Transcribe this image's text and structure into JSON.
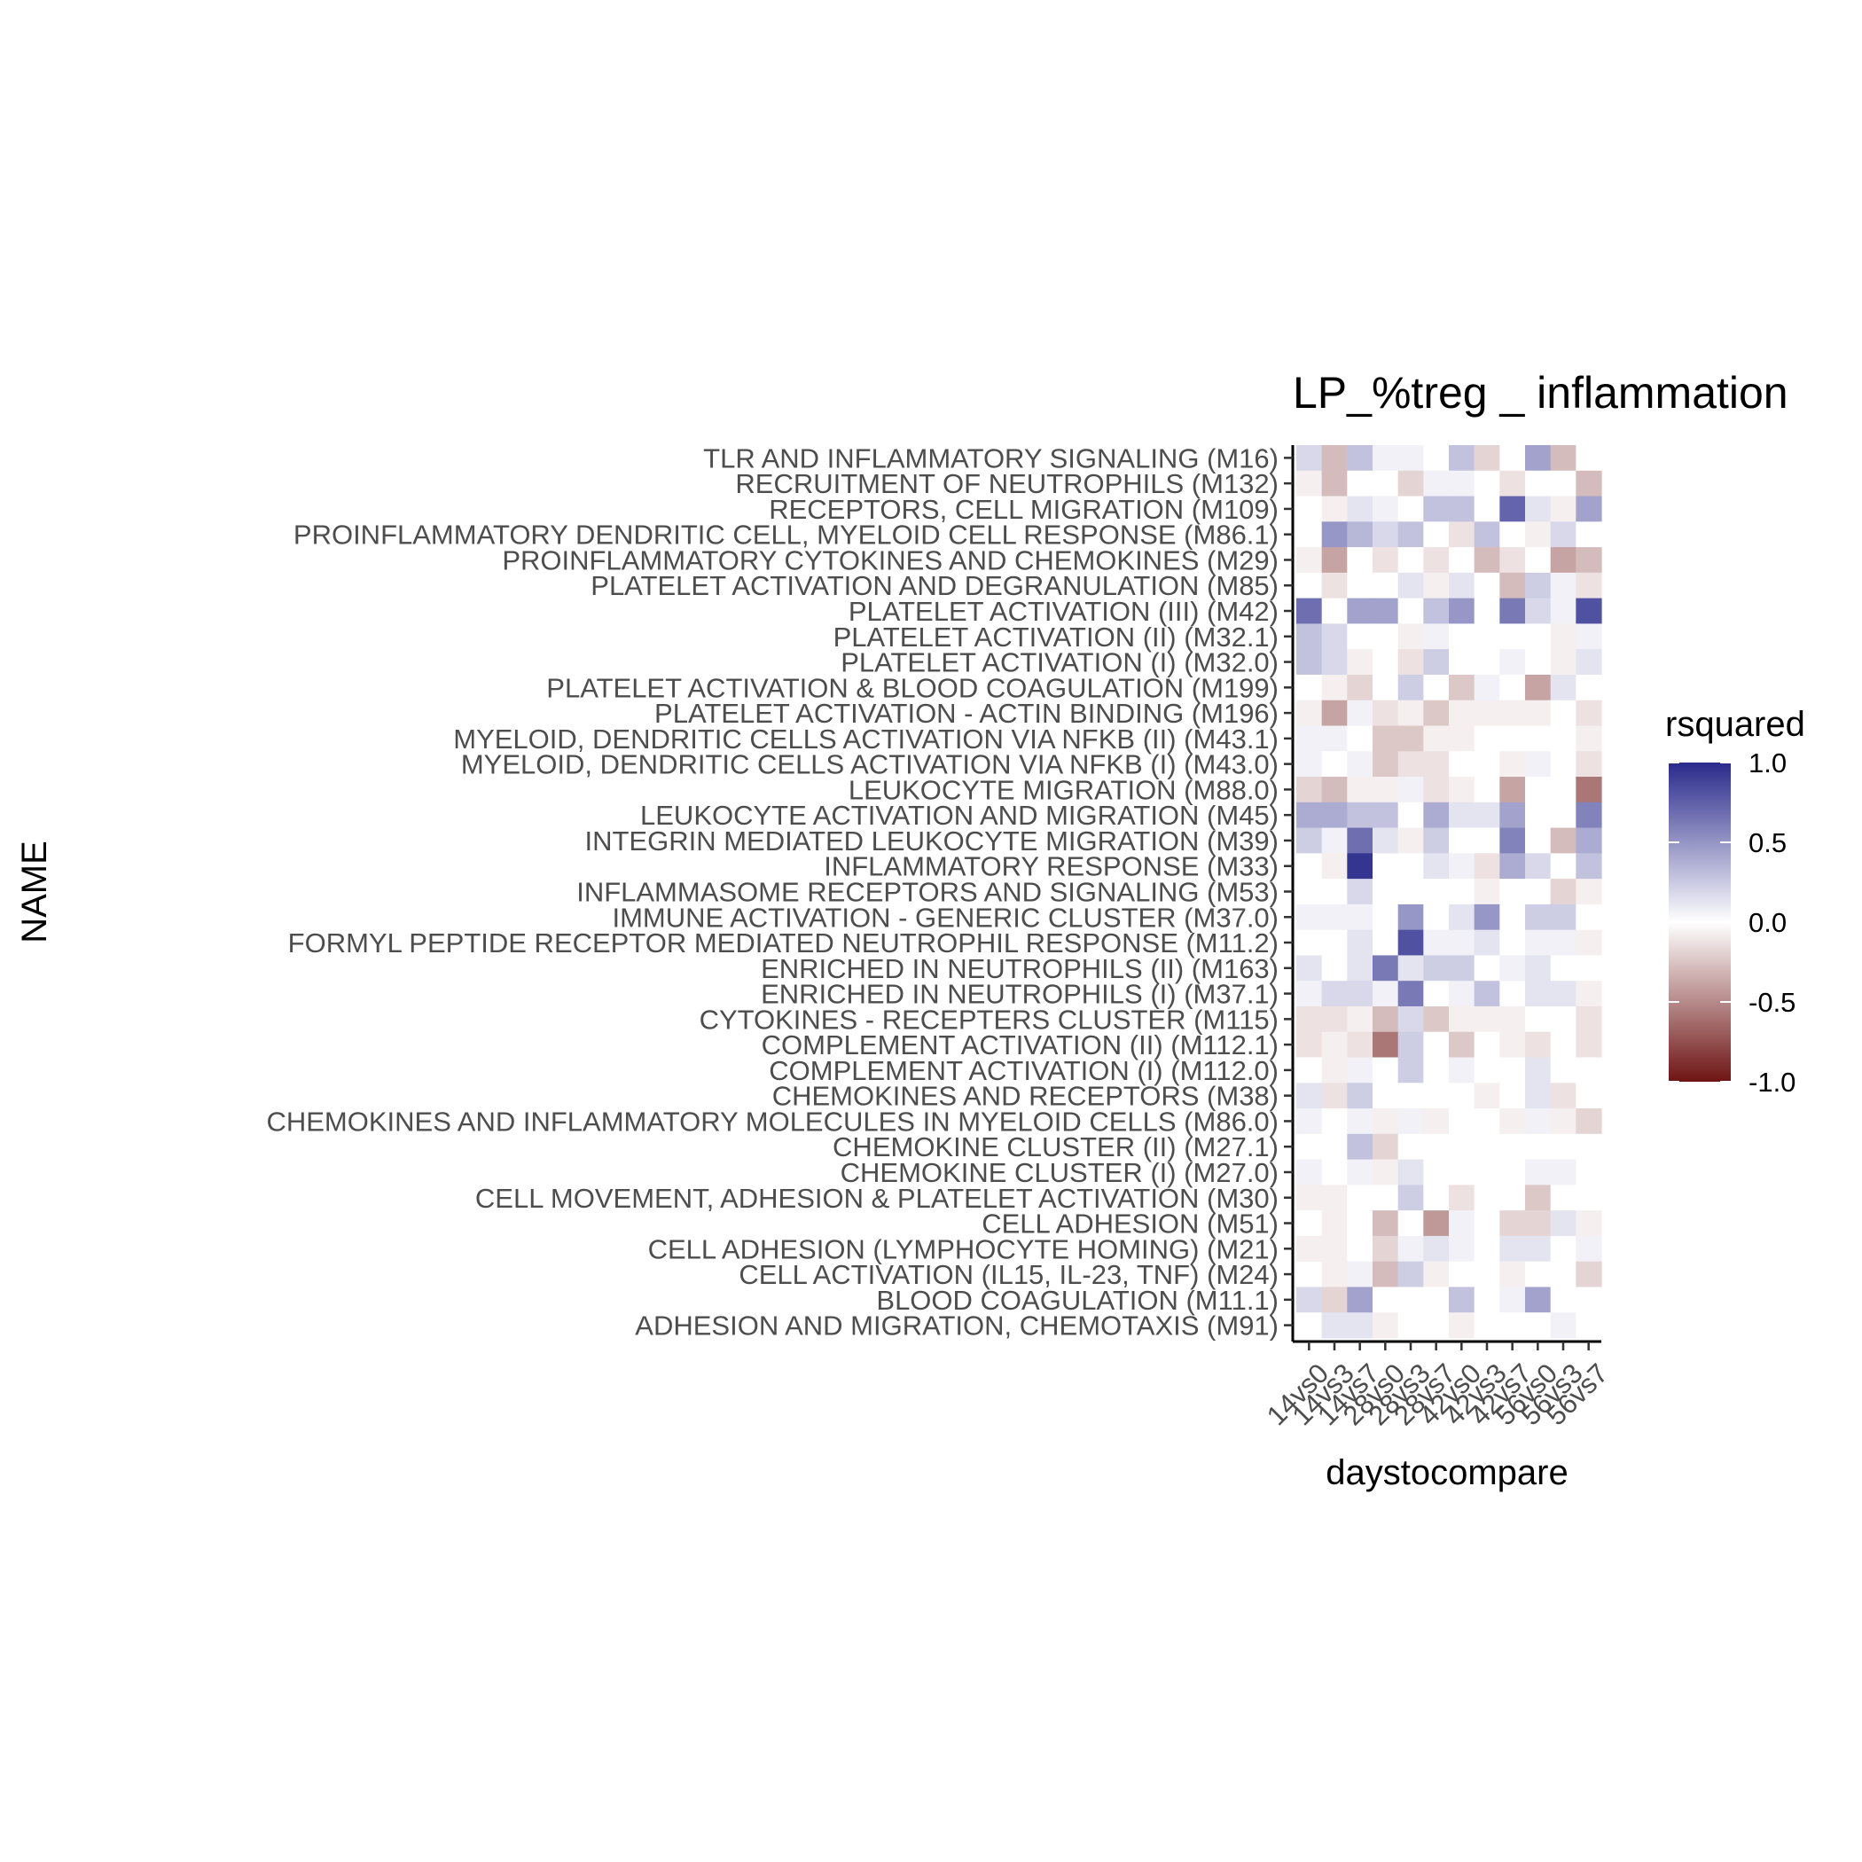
{
  "chart_data": {
    "type": "heatmap",
    "title": "LP_%treg _ inflammation",
    "xlabel": "daystocompare",
    "ylabel": "NAME",
    "legend_title": "rsquared",
    "legend_placement": "right",
    "legend_ticks": [
      "1.0",
      "0.5",
      "0.0",
      "-0.5",
      "-1.0"
    ],
    "legend_tick_values": [
      1.0,
      0.5,
      0.0,
      -0.5,
      -1.0
    ],
    "color_range": [
      -1,
      1
    ],
    "colors": {
      "high": "#2a2a8c",
      "mid": "#ffffff",
      "low": "#6e1414"
    },
    "x_categories": [
      "14vs0",
      "14vs3",
      "14vs7",
      "28vs0",
      "28vs3",
      "28vs7",
      "42vs0",
      "42vs3",
      "42vs7",
      "56vs0",
      "56vs3",
      "56vs7"
    ],
    "y_categories": [
      "TLR AND INFLAMMATORY SIGNALING (M16)",
      "RECRUITMENT OF NEUTROPHILS (M132)",
      "RECEPTORS, CELL MIGRATION (M109)",
      "PROINFLAMMATORY DENDRITIC CELL, MYELOID CELL RESPONSE (M86.1)",
      "PROINFLAMMATORY CYTOKINES AND CHEMOKINES (M29)",
      "PLATELET ACTIVATION AND DEGRANULATION (M85)",
      "PLATELET ACTIVATION (III) (M42)",
      "PLATELET ACTIVATION (II) (M32.1)",
      "PLATELET ACTIVATION (I) (M32.0)",
      "PLATELET ACTIVATION & BLOOD COAGULATION (M199)",
      "PLATELET ACTIVATION - ACTIN BINDING (M196)",
      "MYELOID, DENDRITIC CELLS ACTIVATION VIA NFKB (II) (M43.1)",
      "MYELOID, DENDRITIC CELLS ACTIVATION VIA NFKB (I) (M43.0)",
      "LEUKOCYTE MIGRATION (M88.0)",
      "LEUKOCYTE ACTIVATION AND MIGRATION (M45)",
      "INTEGRIN MEDIATED LEUKOCYTE MIGRATION (M39)",
      "INFLAMMATORY RESPONSE (M33)",
      "INFLAMMASOME RECEPTORS AND SIGNALING (M53)",
      "IMMUNE ACTIVATION - GENERIC CLUSTER (M37.0)",
      "FORMYL PEPTIDE RECEPTOR MEDIATED NEUTROPHIL RESPONSE (M11.2)",
      "ENRICHED IN NEUTROPHILS (II) (M163)",
      "ENRICHED IN NEUTROPHILS (I) (M37.1)",
      "CYTOKINES - RECEPTERS CLUSTER (M115)",
      "COMPLEMENT ACTIVATION (II) (M112.1)",
      "COMPLEMENT ACTIVATION (I) (M112.0)",
      "CHEMOKINES AND RECEPTORS (M38)",
      "CHEMOKINES AND INFLAMMATORY MOLECULES IN MYELOID CELLS (M86.0)",
      "CHEMOKINE CLUSTER (II) (M27.1)",
      "CHEMOKINE CLUSTER (I) (M27.0)",
      "CELL MOVEMENT, ADHESION & PLATELET ACTIVATION (M30)",
      "CELL ADHESION (M51)",
      "CELL ADHESION (LYMPHOCYTE HOMING) (M21)",
      "CELL ACTIVATION (IL15, IL-23, TNF) (M24)",
      "BLOOD COAGULATION (M11.1)",
      "ADHESION AND MIGRATION, CHEMOTAXIS (M91)"
    ],
    "values": [
      [
        0.15,
        -0.25,
        0.25,
        0.05,
        0.05,
        0.0,
        0.25,
        -0.15,
        0.0,
        0.4,
        -0.25,
        0.0
      ],
      [
        -0.05,
        -0.25,
        0.0,
        0.0,
        -0.15,
        0.05,
        0.05,
        0.0,
        -0.1,
        0.0,
        0.0,
        -0.25
      ],
      [
        0.0,
        -0.05,
        0.1,
        0.05,
        0.0,
        0.25,
        0.25,
        0.0,
        0.7,
        0.1,
        -0.05,
        0.4
      ],
      [
        0.0,
        0.45,
        0.3,
        0.15,
        0.25,
        0.0,
        -0.1,
        0.25,
        0.0,
        -0.05,
        0.15,
        0.0
      ],
      [
        -0.05,
        -0.35,
        0.0,
        -0.1,
        0.0,
        -0.1,
        0.0,
        -0.25,
        -0.1,
        0.0,
        -0.35,
        -0.25
      ],
      [
        0.0,
        -0.1,
        0.0,
        0.0,
        0.1,
        -0.05,
        0.1,
        0.0,
        -0.25,
        0.2,
        0.05,
        -0.1
      ],
      [
        0.65,
        0.0,
        0.4,
        0.4,
        0.0,
        0.25,
        0.45,
        0.0,
        0.6,
        0.15,
        0.05,
        0.8
      ],
      [
        0.25,
        0.15,
        0.0,
        0.0,
        -0.05,
        0.05,
        0.0,
        0.0,
        0.0,
        0.0,
        -0.05,
        0.05
      ],
      [
        0.25,
        0.15,
        -0.05,
        0.0,
        -0.1,
        0.2,
        0.0,
        0.0,
        0.05,
        0.0,
        -0.05,
        0.1
      ],
      [
        0.0,
        -0.05,
        -0.15,
        0.0,
        0.2,
        0.0,
        -0.2,
        0.05,
        0.0,
        -0.35,
        0.1,
        0.0
      ],
      [
        -0.05,
        -0.35,
        0.05,
        -0.1,
        -0.05,
        -0.2,
        -0.05,
        -0.05,
        -0.05,
        -0.05,
        0.0,
        -0.1
      ],
      [
        0.05,
        0.05,
        0.0,
        -0.2,
        -0.2,
        -0.05,
        -0.05,
        0.0,
        0.0,
        0.0,
        0.0,
        -0.05
      ],
      [
        0.05,
        0.0,
        0.05,
        -0.2,
        -0.1,
        -0.1,
        0.0,
        0.0,
        -0.05,
        0.05,
        0.0,
        -0.1
      ],
      [
        -0.15,
        -0.25,
        -0.05,
        -0.05,
        0.05,
        -0.1,
        -0.05,
        0.0,
        -0.35,
        0.0,
        0.0,
        -0.55
      ],
      [
        0.35,
        0.35,
        0.25,
        0.25,
        0.0,
        0.35,
        0.1,
        0.1,
        0.4,
        0.0,
        0.0,
        0.55
      ],
      [
        0.2,
        0.05,
        0.65,
        0.1,
        -0.05,
        0.2,
        0.0,
        0.0,
        0.55,
        0.0,
        -0.25,
        0.35
      ],
      [
        0.0,
        -0.05,
        0.95,
        0.0,
        0.0,
        0.1,
        0.05,
        -0.1,
        0.35,
        0.15,
        0.0,
        0.25
      ],
      [
        0.0,
        0.0,
        0.15,
        0.0,
        0.0,
        0.0,
        0.0,
        -0.05,
        0.0,
        0.0,
        -0.15,
        -0.05
      ],
      [
        0.05,
        0.05,
        0.05,
        0.0,
        0.45,
        0.0,
        0.1,
        0.45,
        0.0,
        0.2,
        0.2,
        0.0
      ],
      [
        0.0,
        0.0,
        0.1,
        0.0,
        0.8,
        0.05,
        0.05,
        0.1,
        0.0,
        0.05,
        0.05,
        -0.05
      ],
      [
        0.1,
        0.0,
        0.1,
        0.6,
        0.1,
        0.2,
        0.2,
        0.0,
        0.05,
        0.1,
        0.0,
        0.0
      ],
      [
        0.05,
        0.15,
        0.15,
        0.05,
        0.6,
        0.0,
        0.05,
        0.25,
        0.0,
        0.1,
        0.1,
        -0.05
      ],
      [
        -0.1,
        -0.1,
        -0.05,
        -0.25,
        0.15,
        -0.2,
        -0.05,
        -0.05,
        -0.05,
        0.0,
        0.0,
        -0.1
      ],
      [
        -0.1,
        -0.05,
        -0.1,
        -0.55,
        0.2,
        0.0,
        -0.2,
        0.0,
        -0.05,
        -0.1,
        0.0,
        -0.1
      ],
      [
        0.0,
        -0.05,
        0.05,
        0.0,
        0.2,
        0.0,
        0.05,
        0.0,
        0.0,
        0.1,
        0.0,
        0.0
      ],
      [
        0.1,
        -0.1,
        0.2,
        0.0,
        0.0,
        0.0,
        0.0,
        -0.05,
        0.0,
        0.1,
        -0.1,
        0.0
      ],
      [
        0.05,
        0.0,
        0.05,
        -0.05,
        0.05,
        -0.05,
        0.0,
        0.0,
        -0.05,
        0.05,
        -0.05,
        -0.15
      ],
      [
        0.0,
        0.0,
        0.25,
        -0.15,
        0.0,
        0.0,
        0.0,
        0.0,
        0.0,
        0.0,
        0.0,
        0.0
      ],
      [
        0.05,
        0.0,
        0.05,
        -0.05,
        0.1,
        0.0,
        0.0,
        0.0,
        0.0,
        0.05,
        0.05,
        0.0
      ],
      [
        -0.05,
        -0.05,
        0.0,
        0.0,
        0.2,
        0.0,
        -0.1,
        0.0,
        0.0,
        -0.2,
        0.0,
        0.0
      ],
      [
        0.0,
        -0.05,
        0.0,
        -0.25,
        0.0,
        -0.4,
        0.05,
        0.0,
        -0.15,
        -0.15,
        0.1,
        -0.05
      ],
      [
        -0.05,
        -0.05,
        0.0,
        -0.15,
        0.05,
        0.1,
        0.05,
        0.0,
        0.1,
        0.1,
        0.0,
        0.05
      ],
      [
        0.0,
        -0.05,
        0.05,
        -0.25,
        0.2,
        -0.05,
        0.0,
        0.0,
        -0.05,
        0.0,
        0.0,
        -0.15
      ],
      [
        0.15,
        -0.15,
        0.4,
        0.0,
        0.0,
        0.0,
        0.25,
        0.0,
        0.05,
        0.4,
        0.0,
        0.0
      ],
      [
        0.0,
        0.1,
        0.1,
        -0.05,
        0.0,
        0.0,
        -0.05,
        0.0,
        0.0,
        0.0,
        0.05,
        0.0
      ]
    ]
  }
}
